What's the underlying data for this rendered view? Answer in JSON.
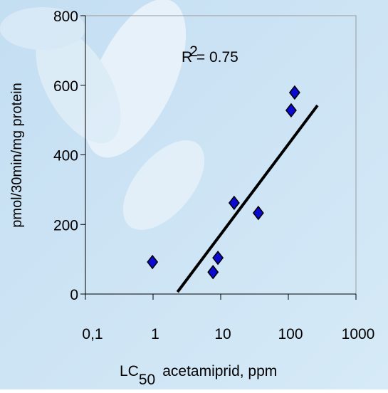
{
  "chart_data": {
    "type": "scatter",
    "y_label": "pmol/30min/mg protein",
    "x_label": {
      "main": "LC",
      "sub": "50",
      "rest": "acetamiprid, ppm"
    },
    "annotation": {
      "base": "R",
      "sup": "2",
      "text": "= 0.75"
    },
    "x": [
      0.98,
      7.7,
      9.1,
      15.8,
      36,
      110,
      124
    ],
    "values": [
      92,
      63,
      104,
      262,
      233,
      528,
      579
    ],
    "color": "#0a0ad0",
    "trendline": {
      "x": [
        2.3,
        270
      ],
      "values": [
        6,
        542
      ]
    },
    "xlog": true,
    "xlim": [
      0.1,
      1000
    ],
    "xticks": [
      {
        "value": 0.1,
        "label": "0,1"
      },
      1,
      10,
      100,
      1000
    ],
    "ylim": [
      0,
      800
    ],
    "yticks": [
      0,
      200,
      400,
      600,
      800
    ]
  }
}
